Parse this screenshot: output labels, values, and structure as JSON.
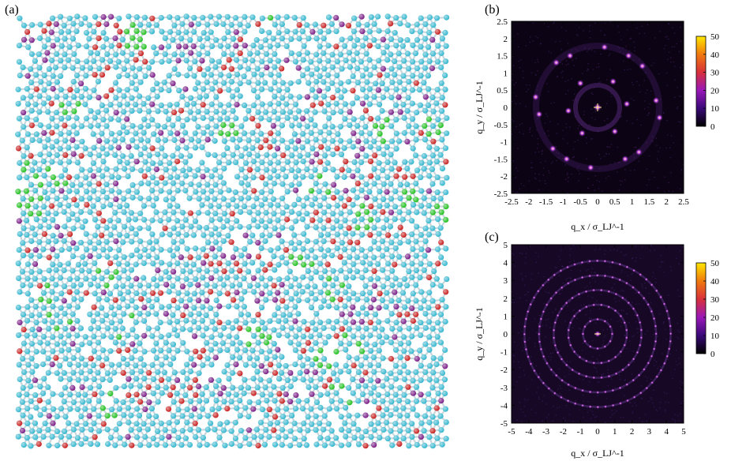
{
  "labels": {
    "a": "(a)",
    "b": "(b)",
    "c": "(c)"
  },
  "atom_colors": {
    "bond": "#c9d6dc",
    "base": "#35b7cf",
    "red": "#c81e1e",
    "purple": "#7a1c86",
    "green": "#22c020"
  },
  "panel_b": {
    "xlabel": "q_x / σ_LJ^-1",
    "ylabel": "q_y / σ_LJ^-1",
    "xticks": [
      "-2.5",
      "-2",
      "-1.5",
      "-1",
      "-0.5",
      "0",
      "0.5",
      "1",
      "1.5",
      "2",
      "2.5"
    ],
    "yticks": [
      "2.5",
      "2",
      "1.5",
      "1",
      "0.5",
      "0",
      "-0.5",
      "-1",
      "-1.5",
      "-2",
      "-2.5"
    ],
    "colorbar_ticks": [
      "50",
      "40",
      "30",
      "20",
      "10",
      "0"
    ]
  },
  "panel_c": {
    "xlabel": "q_x / σ_LJ^-1",
    "ylabel": "q_y / σ_LJ^-1",
    "xticks": [
      "-5",
      "-4",
      "-3",
      "-2",
      "-1",
      "0",
      "1",
      "2",
      "3",
      "4",
      "5"
    ],
    "yticks": [
      "5",
      "4",
      "3",
      "2",
      "1",
      "0",
      "-1",
      "-2",
      "-3",
      "-4",
      "-5"
    ],
    "colorbar_ticks": [
      "50",
      "40",
      "30",
      "20",
      "10",
      "0"
    ]
  },
  "chart_data": [
    {
      "type": "heatmap",
      "xlabel": "q_x / σ_LJ^-1",
      "ylabel": "q_y / σ_LJ^-1",
      "xlim": [
        -2.5,
        2.5
      ],
      "ylim": [
        -2.5,
        2.5
      ],
      "colorbar_range": [
        0,
        50
      ],
      "peaks_q": [
        [
          0,
          0
        ],
        [
          0.85,
          0.1
        ],
        [
          -0.85,
          -0.1
        ],
        [
          0.45,
          0.75
        ],
        [
          -0.45,
          -0.75
        ],
        [
          -0.5,
          0.7
        ],
        [
          0.5,
          -0.7
        ],
        [
          1.7,
          0.2
        ],
        [
          -1.7,
          -0.2
        ],
        [
          0.9,
          1.5
        ],
        [
          -0.9,
          -1.5
        ],
        [
          -0.8,
          1.5
        ],
        [
          0.8,
          -1.5
        ],
        [
          1.8,
          -0.3
        ],
        [
          -1.8,
          0.3
        ],
        [
          0.2,
          1.75
        ],
        [
          -0.2,
          -1.75
        ],
        [
          -1.2,
          1.3
        ],
        [
          1.2,
          -1.3
        ],
        [
          1.3,
          1.2
        ],
        [
          -1.3,
          -1.2
        ]
      ]
    },
    {
      "type": "heatmap",
      "xlabel": "q_x / σ_LJ^-1",
      "ylabel": "q_y / σ_LJ^-1",
      "xlim": [
        -5,
        5
      ],
      "ylim": [
        -5,
        5
      ],
      "colorbar_range": [
        0,
        50
      ],
      "ring_radii_q": [
        0.85,
        1.7,
        2.55,
        3.4,
        4.25
      ]
    }
  ]
}
